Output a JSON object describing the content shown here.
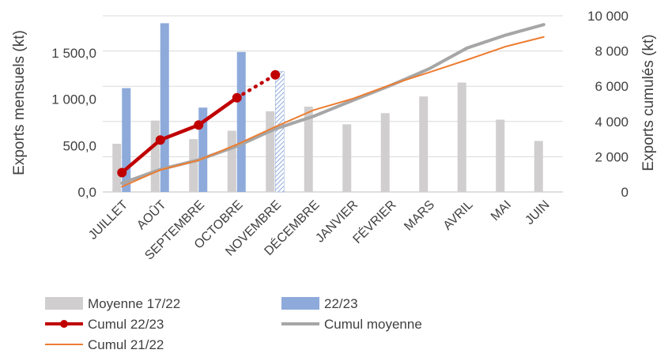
{
  "chart_data": {
    "type": "bar",
    "categories": [
      "JUILLET",
      "AOÛT",
      "SEPTEMBRE",
      "OCTOBRE",
      "NOVEMBRE",
      "DÉCEMBRE",
      "JANVIER",
      "FÉVRIER",
      "MARS",
      "AVRIL",
      "MAI",
      "JUIN"
    ],
    "ylabel": "Exports mensuels (kt)",
    "y2label": "Exports cumulés (kt)",
    "ylim": [
      0,
      1900
    ],
    "y2lim": [
      0,
      10000
    ],
    "yticks": [
      "0,0",
      "500,0",
      "1 000,0",
      "1 500,0"
    ],
    "y2ticks": [
      "0",
      "2 000",
      "4 000",
      "6 000",
      "8 000",
      "10 000"
    ],
    "ytick_values": [
      0,
      500,
      1000,
      1500
    ],
    "y2tick_values": [
      0,
      2000,
      4000,
      6000,
      8000,
      10000
    ],
    "grid": true,
    "legend_position": "bottom",
    "series": [
      {
        "name": "Moyenne 17/22",
        "kind": "bar",
        "axis": "left",
        "color": "#d0cece",
        "values": [
          520,
          770,
          570,
          660,
          870,
          920,
          730,
          850,
          1030,
          1180,
          780,
          550
        ]
      },
      {
        "name": "22/23",
        "kind": "bar",
        "axis": "left",
        "color": "#8eaadb",
        "hatched_last": true,
        "values": [
          1120,
          1820,
          910,
          1510,
          1300,
          null,
          null,
          null,
          null,
          null,
          null,
          null
        ]
      },
      {
        "name": "Cumul 22/23",
        "kind": "line",
        "axis": "right",
        "color": "#c00000",
        "markers": true,
        "dotted_last": true,
        "values": [
          1100,
          2950,
          3800,
          5350,
          6650,
          null,
          null,
          null,
          null,
          null,
          null,
          null
        ]
      },
      {
        "name": "Cumul moyenne",
        "kind": "line",
        "axis": "right",
        "color": "#a6a6a6",
        "values": [
          500,
          1280,
          1820,
          2600,
          3580,
          4300,
          5180,
          6040,
          6980,
          8170,
          8900,
          9500
        ]
      },
      {
        "name": "Cumul 21/22",
        "kind": "line",
        "axis": "right",
        "color": "#ed7d31",
        "values": [
          300,
          1250,
          1800,
          2700,
          3700,
          4650,
          5280,
          6080,
          6780,
          7500,
          8250,
          8800
        ]
      }
    ]
  }
}
